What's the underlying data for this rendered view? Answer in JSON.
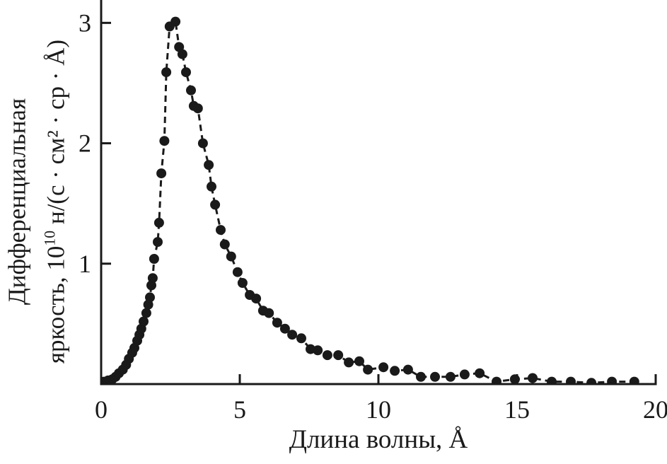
{
  "chart_data": {
    "type": "line",
    "title": "",
    "xlabel": "Длина волны, Å",
    "ylabel_line1": "Дифференциальная",
    "ylabel_line2_pre": "яркость, 10",
    "ylabel_exponent": "10",
    "ylabel_line2_post": " н/(с · см² · ср · Å)",
    "xlim": [
      0,
      20
    ],
    "ylim": [
      0,
      3.19
    ],
    "xticks": [
      0,
      5,
      10,
      15,
      20
    ],
    "yticks": [
      1,
      2,
      3
    ],
    "grid": false,
    "legend": "none",
    "line_style": "dashed",
    "marker": "filled-circle",
    "marker_radius": 7,
    "color": "#1a1a1a",
    "background": "#ffffff",
    "points": [
      [
        0.1,
        0.02
      ],
      [
        0.25,
        0.03
      ],
      [
        0.4,
        0.04
      ],
      [
        0.52,
        0.06
      ],
      [
        0.64,
        0.09
      ],
      [
        0.78,
        0.12
      ],
      [
        0.9,
        0.16
      ],
      [
        1.0,
        0.21
      ],
      [
        1.12,
        0.26
      ],
      [
        1.2,
        0.3
      ],
      [
        1.3,
        0.36
      ],
      [
        1.38,
        0.41
      ],
      [
        1.45,
        0.46
      ],
      [
        1.53,
        0.52
      ],
      [
        1.63,
        0.59
      ],
      [
        1.7,
        0.66
      ],
      [
        1.76,
        0.72
      ],
      [
        1.81,
        0.82
      ],
      [
        1.86,
        0.88
      ],
      [
        1.91,
        1.04
      ],
      [
        2.04,
        1.18
      ],
      [
        2.09,
        1.34
      ],
      [
        2.17,
        1.75
      ],
      [
        2.28,
        2.02
      ],
      [
        2.35,
        2.59
      ],
      [
        2.47,
        2.97
      ],
      [
        2.68,
        3.01
      ],
      [
        2.81,
        2.8
      ],
      [
        2.93,
        2.74
      ],
      [
        3.06,
        2.59
      ],
      [
        3.24,
        2.44
      ],
      [
        3.34,
        2.31
      ],
      [
        3.49,
        2.29
      ],
      [
        3.67,
        2.0
      ],
      [
        3.88,
        1.82
      ],
      [
        3.98,
        1.64
      ],
      [
        4.11,
        1.49
      ],
      [
        4.31,
        1.28
      ],
      [
        4.46,
        1.16
      ],
      [
        4.69,
        1.06
      ],
      [
        4.92,
        0.93
      ],
      [
        5.1,
        0.84
      ],
      [
        5.36,
        0.74
      ],
      [
        5.59,
        0.71
      ],
      [
        5.84,
        0.61
      ],
      [
        6.05,
        0.59
      ],
      [
        6.35,
        0.51
      ],
      [
        6.63,
        0.46
      ],
      [
        6.89,
        0.41
      ],
      [
        7.22,
        0.38
      ],
      [
        7.55,
        0.29
      ],
      [
        7.81,
        0.28
      ],
      [
        8.16,
        0.24
      ],
      [
        8.55,
        0.24
      ],
      [
        8.93,
        0.18
      ],
      [
        9.31,
        0.19
      ],
      [
        9.62,
        0.12
      ],
      [
        10.18,
        0.14
      ],
      [
        10.59,
        0.11
      ],
      [
        11.07,
        0.12
      ],
      [
        11.53,
        0.06
      ],
      [
        12.04,
        0.06
      ],
      [
        12.6,
        0.06
      ],
      [
        13.11,
        0.08
      ],
      [
        13.65,
        0.09
      ],
      [
        14.26,
        0.02
      ],
      [
        14.92,
        0.04
      ],
      [
        15.56,
        0.05
      ],
      [
        16.25,
        0.02
      ],
      [
        16.94,
        0.02
      ],
      [
        17.68,
        0.01
      ],
      [
        18.42,
        0.02
      ],
      [
        19.23,
        0.02
      ]
    ]
  }
}
